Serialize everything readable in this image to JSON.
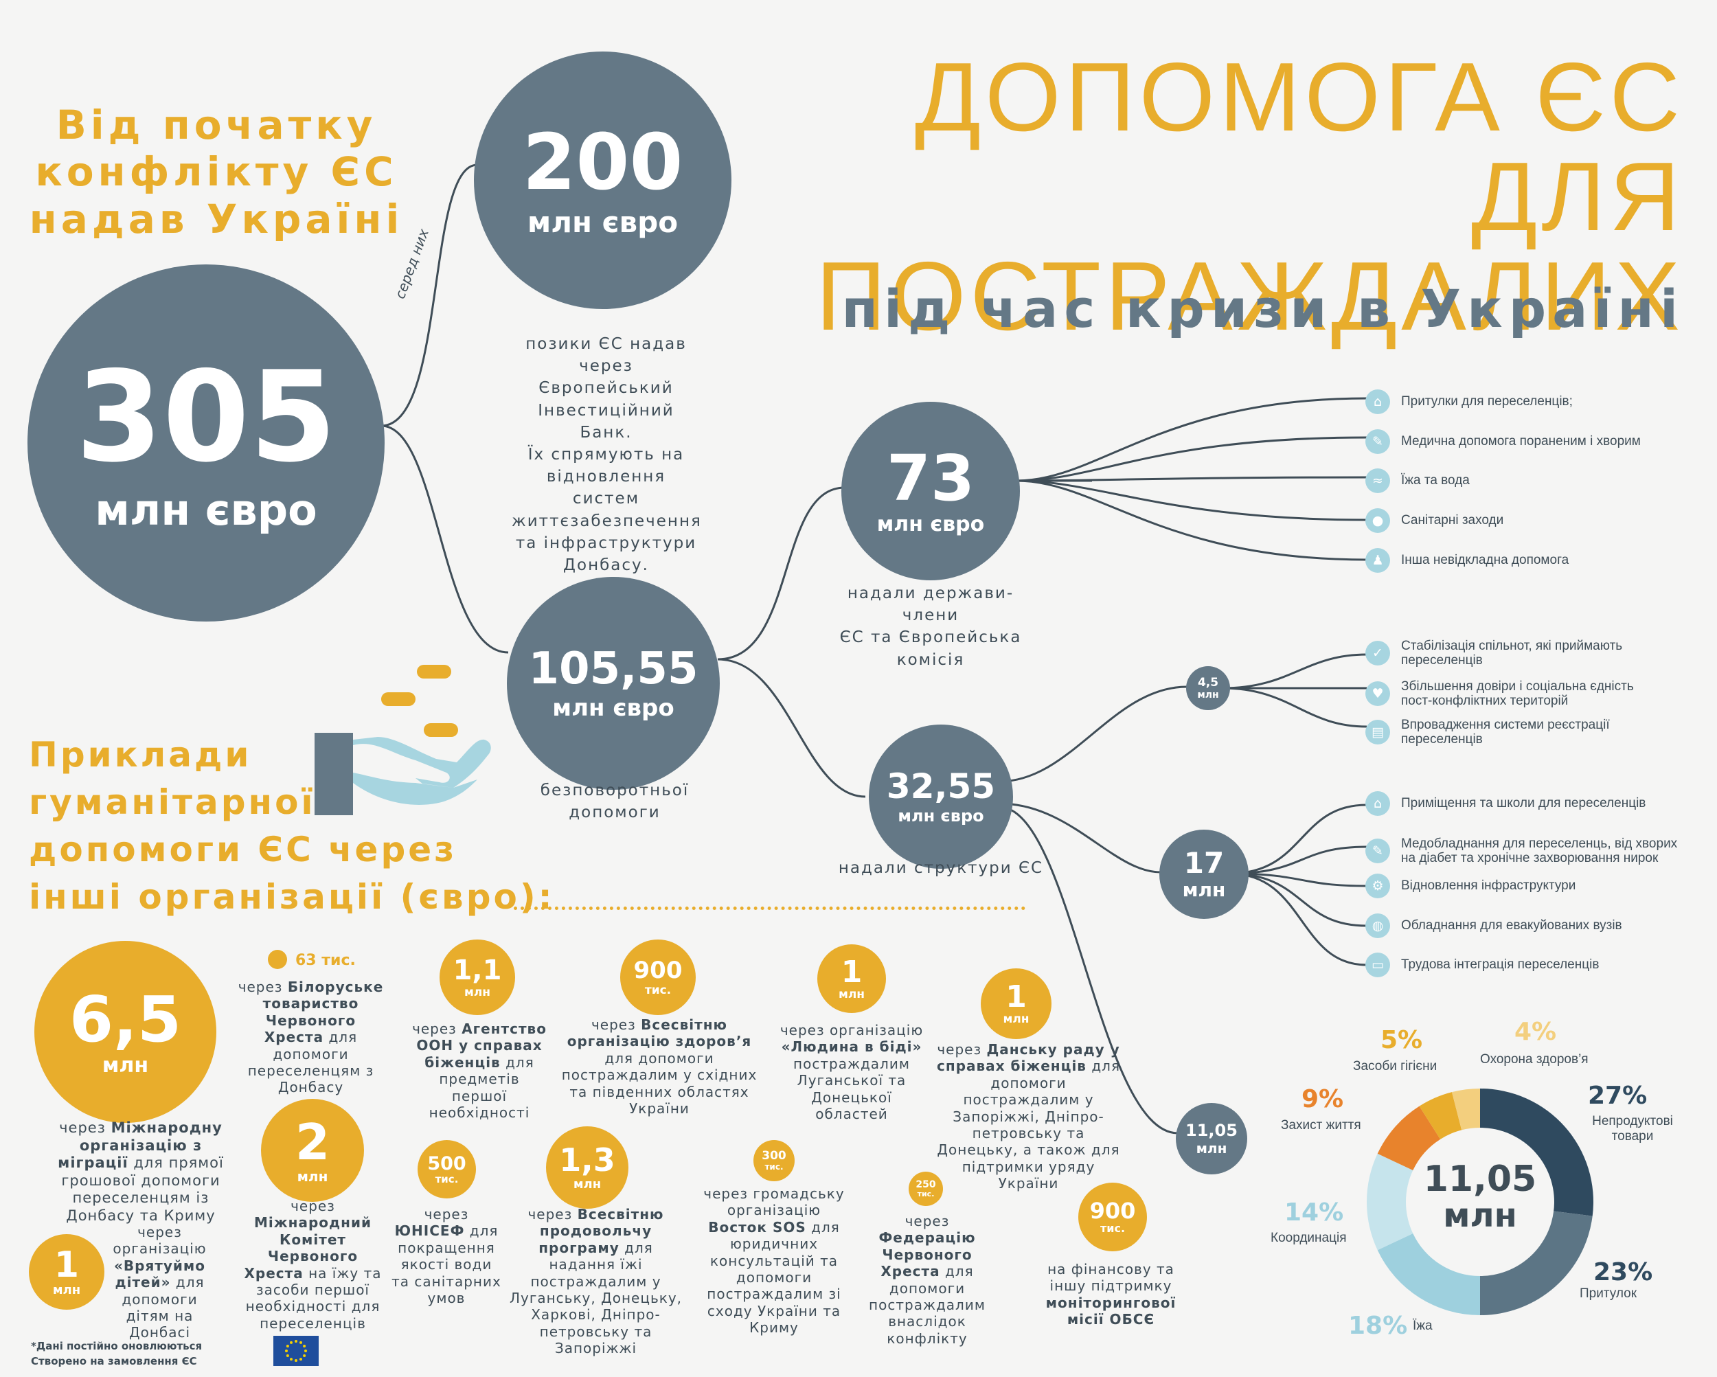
{
  "title": {
    "line1": "ДОПОМОГА ЄС ДЛЯ",
    "line2": "ПОСТРАЖДАЛИХ",
    "line3": "під час кризи в Україні"
  },
  "intro": {
    "line1": "Від початку",
    "line2": "конфлікту ЄС",
    "line3": "надав Україні"
  },
  "among_label": "серед них",
  "total": {
    "value": "305",
    "unit": "млн євро"
  },
  "loans": {
    "value": "200",
    "unit": "млн євро",
    "desc": [
      "позики ЄС надав",
      "через Європейський",
      "Інвестиційний Банк.",
      "Їх спрямують на",
      "відновлення систем",
      "життєзабезпечення",
      "та інфраструктури",
      "Донбасу."
    ]
  },
  "grants": {
    "value": "105,55",
    "unit": "млн євро",
    "desc": [
      "безповоротньої",
      "допомоги"
    ]
  },
  "member_states": {
    "value": "73",
    "unit": "млн євро",
    "desc": [
      "надали держави-члени",
      "ЄС та Європейська",
      "комісія"
    ],
    "items": [
      {
        "icon": "house-icon",
        "glyph": "⌂",
        "label": "Притулки для переселенців;"
      },
      {
        "icon": "syringe-icon",
        "glyph": "✎",
        "label": "Медична допомога пораненим і хворим"
      },
      {
        "icon": "bread-icon",
        "glyph": "≈",
        "label": "Їжа та вода"
      },
      {
        "icon": "water-drop-icon",
        "glyph": "●",
        "label": "Санітарні заходи"
      },
      {
        "icon": "people-icon",
        "glyph": "♟",
        "label": "Інша невідкладна допомога"
      }
    ]
  },
  "eu_structures": {
    "value": "32,55",
    "unit": "млн євро",
    "desc": [
      "надали структури ЄС"
    ]
  },
  "sub_45": {
    "value": "4,5",
    "unit": "млн",
    "items": [
      {
        "icon": "checkmark-icon",
        "glyph": "✓",
        "lines": [
          "Стабілізація спільнот, які приймають",
          "переселенців"
        ]
      },
      {
        "icon": "heart-icon",
        "glyph": "♥",
        "lines": [
          "Збільшення довіри і соціальна єдність",
          "пост-конфліктних територій"
        ]
      },
      {
        "icon": "id-card-icon",
        "glyph": "▤",
        "lines": [
          "Впровадження системи реєстрації",
          "переселенців"
        ]
      }
    ]
  },
  "sub_17": {
    "value": "17",
    "unit": "млн",
    "items": [
      {
        "icon": "house-icon",
        "glyph": "⌂",
        "lines": [
          "Приміщення та школи для переселенців"
        ]
      },
      {
        "icon": "syringe-icon",
        "glyph": "✎",
        "lines": [
          "Медобладнання для переселенць, від хворих",
          "на діабет та хронічне захворювання нирок"
        ]
      },
      {
        "icon": "gear-icon",
        "glyph": "⚙",
        "lines": [
          "Відновлення інфраструктури"
        ]
      },
      {
        "icon": "globe-icon",
        "glyph": "◍",
        "lines": [
          "Обладнання для евакуйованих вузів"
        ]
      },
      {
        "icon": "briefcase-icon",
        "glyph": "▭",
        "lines": [
          "Трудова інтеграція переселенців"
        ]
      }
    ]
  },
  "sub_1105": {
    "value": "11,05",
    "unit": "млн"
  },
  "examples_heading": [
    "Приклади",
    "гуманітарної",
    "допомоги ЄС через",
    "інші організації (євро):"
  ],
  "orgs": {
    "iom": {
      "value": "6,5",
      "unit": "млн",
      "pre": "через ",
      "bold": "Міжнародну організацію з міграції",
      "post": " для прямої грошової допомоги переселенцям із Донбасу та Криму"
    },
    "belarus_rc": {
      "value": "63 тис.",
      "pre": "через ",
      "bold": "Білоруське товариство Червоного Хреста",
      "post": " для допомоги переселенцям з Донбасу"
    },
    "unhcr": {
      "value": "1,1",
      "unit": "млн",
      "pre": "через ",
      "bold": "Агентство ООН у справах біженців",
      "post": " для предметів першої необхідності"
    },
    "who": {
      "value": "900",
      "unit": "тис.",
      "pre": "через ",
      "bold": "Всесвітню організацію здоров’я",
      "post": " для допомоги постраждалим у східних та південних областях України"
    },
    "pin": {
      "value": "1",
      "unit": "млн",
      "pre": "через організацію ",
      "bold": "«Людина в біді»",
      "post": " постраждалим Луганської та Донецької областей"
    },
    "drc": {
      "value": "1",
      "unit": "млн",
      "pre": "через ",
      "bold": "Данську раду у справах біженців",
      "post": " для допомоги постраждалим у Запоріжжі, Дніпро-петровську та Донецьку, а також для підтримки уряду України"
    },
    "icrc": {
      "value": "2",
      "unit": "млн",
      "pre": "через ",
      "bold": "Міжнародний Комітет Червоного Хреста",
      "post": " на їжу та засоби першої необхідності для переселенців"
    },
    "unicef": {
      "value": "500",
      "unit": "тис.",
      "pre": "через ",
      "bold": "ЮНІСЕФ",
      "post": " для покращення якості води та санітарних умов"
    },
    "wfp": {
      "value": "1,3",
      "unit": "млн",
      "pre": "через ",
      "bold": "Всесвітню продовольчу програму",
      "post": " для надання їжі постраждалим у Луганську, Донецьку, Харкові, Дніпро-петровську та Запоріжжі"
    },
    "vostok": {
      "value": "300",
      "unit": "тис.",
      "pre": "через громадську організацію ",
      "bold": "Восток SOS",
      "post": " для юридичних консультацій та допомоги постраждалим зі сходу України та Криму"
    },
    "ifrc": {
      "value": "250",
      "unit": "тис.",
      "pre": "через ",
      "bold": "Федерацію Червоного Хреста",
      "post": " для допомоги постраждалим внаслідок конфлікту"
    },
    "osce": {
      "value": "900",
      "unit": "тис.",
      "pre": "на фінансову та іншу підтримку ",
      "bold": "моніторингової місії ОБСЄ",
      "post": ""
    },
    "stc": {
      "value": "1",
      "unit": "млн",
      "pre": "через організацію ",
      "bold": "«Врятуймо дітей»",
      "post": " для допомоги дітям на Донбасі"
    }
  },
  "donut": {
    "center_value": "11,05",
    "center_unit": "млн",
    "segments": [
      {
        "label": "Непродуктові товари",
        "pct": "27%",
        "value": 27,
        "color": "#2f4a5f"
      },
      {
        "label": "Притулок",
        "pct": "23%",
        "value": 23,
        "color": "#5c7585"
      },
      {
        "label": "Їжа",
        "pct": "18%",
        "value": 18,
        "color": "#9ed0de"
      },
      {
        "label": "Координація",
        "pct": "14%",
        "value": 14,
        "color": "#c6e4ec"
      },
      {
        "label": "Захист життя",
        "pct": "9%",
        "value": 9,
        "color": "#e8832c"
      },
      {
        "label": "Засоби гігієни",
        "pct": "5%",
        "value": 5,
        "color": "#e8ad2c"
      },
      {
        "label": "Охорона здоров’я",
        "pct": "4%",
        "value": 4,
        "color": "#f3cf7e"
      }
    ]
  },
  "footer": {
    "note": "*Дані постійно оновлюються",
    "credit": "Створено на замовлення ЄС"
  },
  "colors": {
    "gold": "#e8ad2c",
    "slate": "#647886",
    "dark": "#3f4d57",
    "light_blue": "#a7d5e0",
    "eu_blue": "#1f4e9c",
    "eu_star": "#f5d000"
  }
}
